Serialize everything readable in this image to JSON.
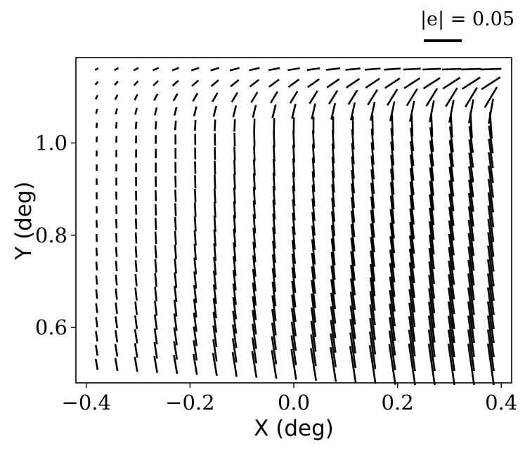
{
  "chart_data": {
    "type": "whisker",
    "xlabel": "X (deg)",
    "ylabel": "Y (deg)",
    "xlim": [
      -0.42,
      0.42
    ],
    "ylim": [
      0.48,
      1.185
    ],
    "x_ticks": [
      -0.4,
      -0.2,
      0.0,
      0.2,
      0.4
    ],
    "x_tick_labels": [
      "−0.4",
      "−0.2",
      "0.0",
      "0.2",
      "0.4"
    ],
    "y_ticks": [
      0.6,
      0.8,
      1.0
    ],
    "y_tick_labels": [
      "0.6",
      "0.8",
      "1.0"
    ],
    "grid": false,
    "legend": {
      "position": "top-right",
      "label": "|e| = 0.05",
      "e_value": 0.05
    },
    "whisker_color": "#000000",
    "field": {
      "x_range": [
        -0.38,
        0.38
      ],
      "y_range": [
        0.52,
        1.16
      ],
      "nx": 21,
      "ny": 22,
      "ellipticity_model": "|e| grows from ~0.005 at upper-left to ~0.055 at lower-right; angle varies smoothly from near-vertical (tilted slightly left) at left/bottom to near-horizontal along the top edge",
      "e_min": 0.005,
      "e_max": 0.055
    }
  }
}
